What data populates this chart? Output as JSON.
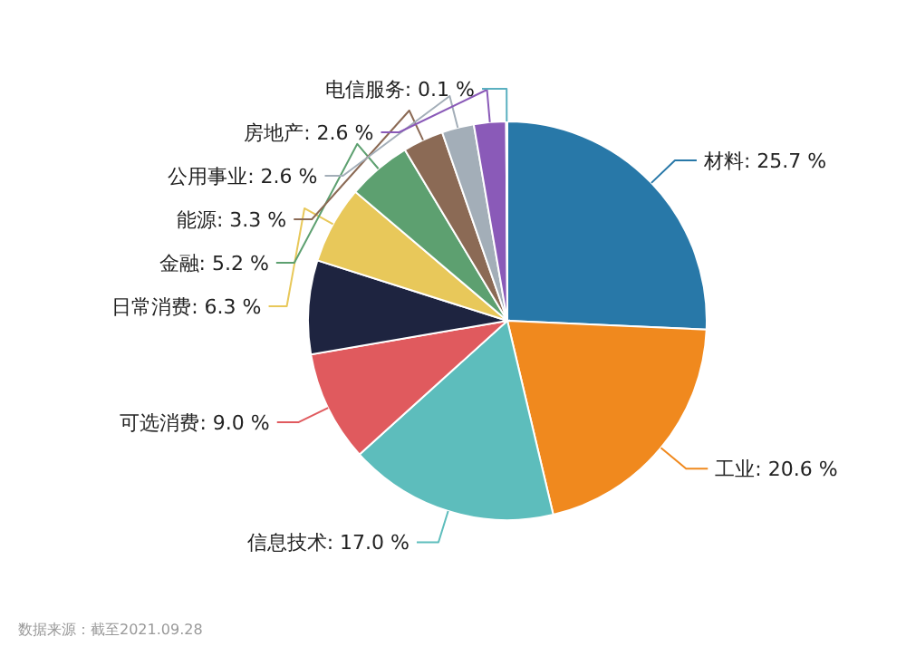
{
  "chart_data": {
    "type": "pie",
    "categories": [
      "材料",
      "工业",
      "信息技术",
      "可选消费",
      null,
      "日常消费",
      "金融",
      "能源",
      "公用事业",
      "房地产",
      "电信服务"
    ],
    "values": [
      25.7,
      20.6,
      17.0,
      9.0,
      7.6,
      6.3,
      5.2,
      3.3,
      2.6,
      2.6,
      0.1
    ],
    "value_labels": [
      "25.7 %",
      "20.6 %",
      "17.0 %",
      "9.0 %",
      null,
      "6.3 %",
      "5.2 %",
      "3.3 %",
      "2.6 %",
      "2.6 %",
      "0.1 %"
    ],
    "colors": [
      "#2878a8",
      "#f0891e",
      "#5dbdbc",
      "#e05a5e",
      "#1e2440",
      "#e8c85a",
      "#5da070",
      "#8b6a55",
      "#a3aeb8",
      "#8a5ab8",
      "#5ab0c0"
    ],
    "annotations": [
      "数据来源：截至2021.09.28"
    ]
  }
}
